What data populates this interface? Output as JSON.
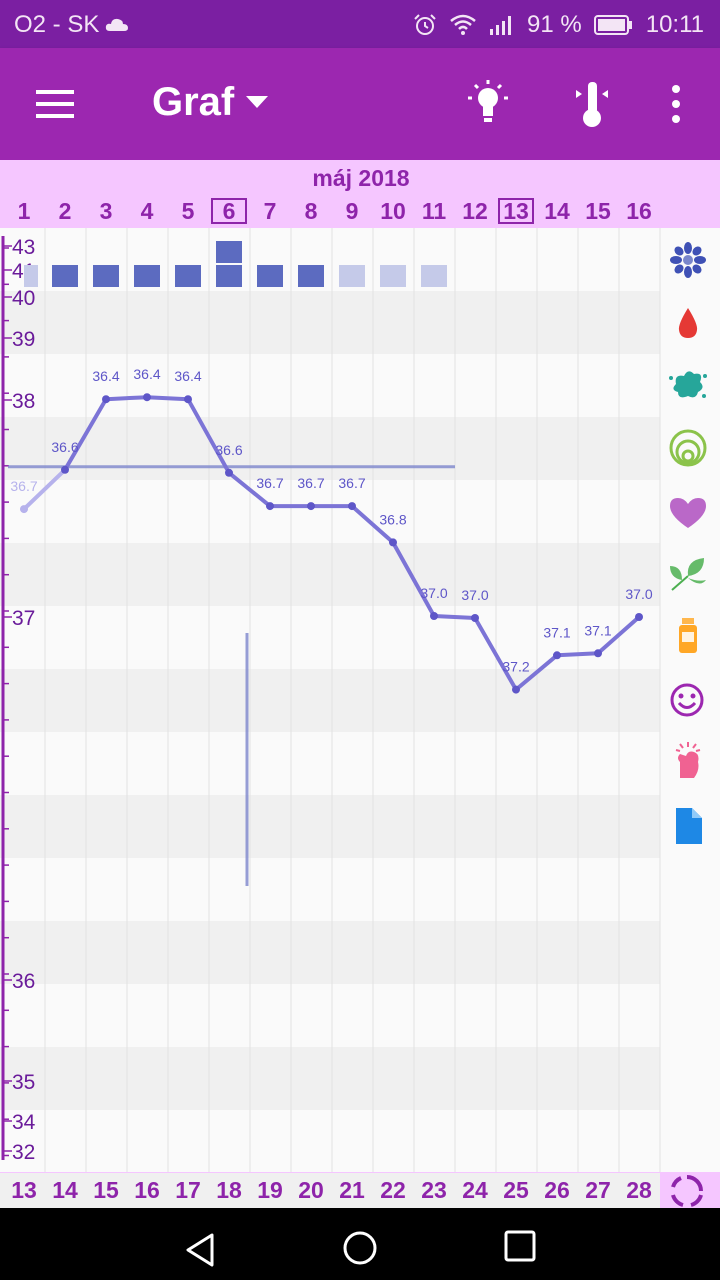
{
  "status_bar": {
    "carrier": "O2 - SK",
    "battery_percent": "91 %",
    "time": "10:11",
    "icons": [
      "cloud-icon",
      "alarm-icon",
      "wifi-icon",
      "signal-icon",
      "battery-icon"
    ]
  },
  "app_bar": {
    "title": "Graf",
    "icons": [
      "menu-icon",
      "dropdown-arrow-icon",
      "lightbulb-icon",
      "thermometer-icon",
      "more-vert-icon"
    ]
  },
  "colors": {
    "status_bar": "#7b1fa2",
    "app_bar": "#9c27b0",
    "day_strip": "#f5c6ff",
    "day_text": "#8e24aa",
    "line": "#7c74d6",
    "cover_line": "#7e86cc",
    "block_dark": "#5c6bc0",
    "block_light": "#c5cae9"
  },
  "side_icons": [
    "flower-icon",
    "blood-drop-icon",
    "splash-icon",
    "rings-icon",
    "heart-icon",
    "leaf-icon",
    "medicine-bottle-icon",
    "smiley-icon",
    "hand-icon",
    "document-icon"
  ],
  "footer_icon": "cycle-icon",
  "chart_data": {
    "type": "line",
    "month_label": "máj 2018",
    "cycle_days": [
      "1",
      "2",
      "3",
      "4",
      "5",
      "6",
      "7",
      "8",
      "9",
      "10",
      "11",
      "12",
      "13",
      "14",
      "15",
      "16"
    ],
    "highlighted_cycle_days": [
      "6",
      "13"
    ],
    "dates": [
      "13",
      "14",
      "15",
      "16",
      "17",
      "18",
      "19",
      "20",
      "21",
      "22",
      "23",
      "24",
      "25",
      "26",
      "27",
      "28"
    ],
    "y_tick_labels": [
      "43",
      "41",
      "40",
      "39",
      "38",
      "37",
      "36",
      "35",
      "34",
      "32"
    ],
    "series": [
      {
        "values": [
          36.7,
          36.6,
          36.4,
          36.4,
          36.4,
          36.6,
          36.7,
          36.7,
          36.7,
          36.8,
          37.0,
          37.0,
          37.2,
          37.1,
          37.1,
          37.0
        ],
        "labels": [
          "36.7",
          "36.6",
          "36.4",
          "36.4",
          "36.4",
          "36.6",
          "36.7",
          "36.7",
          "36.7",
          "36.8",
          "37.0",
          "37.0",
          "37.2",
          "37.1",
          "37.1",
          "37.0"
        ]
      }
    ],
    "coverline": 36.6,
    "ovulation_marker_day": "6",
    "period_blocks": [
      {
        "day": "1",
        "level": 1,
        "style": "light"
      },
      {
        "day": "2",
        "level": 1,
        "style": "dark"
      },
      {
        "day": "3",
        "level": 1,
        "style": "dark"
      },
      {
        "day": "4",
        "level": 1,
        "style": "dark"
      },
      {
        "day": "5",
        "level": 1,
        "style": "dark"
      },
      {
        "day": "6",
        "level": 2,
        "style": "dark"
      },
      {
        "day": "7",
        "level": 1,
        "style": "dark"
      },
      {
        "day": "8",
        "level": 1,
        "style": "dark"
      },
      {
        "day": "9",
        "level": 1,
        "style": "light"
      },
      {
        "day": "10",
        "level": 1,
        "style": "light"
      },
      {
        "day": "11",
        "level": 1,
        "style": "light"
      }
    ]
  }
}
